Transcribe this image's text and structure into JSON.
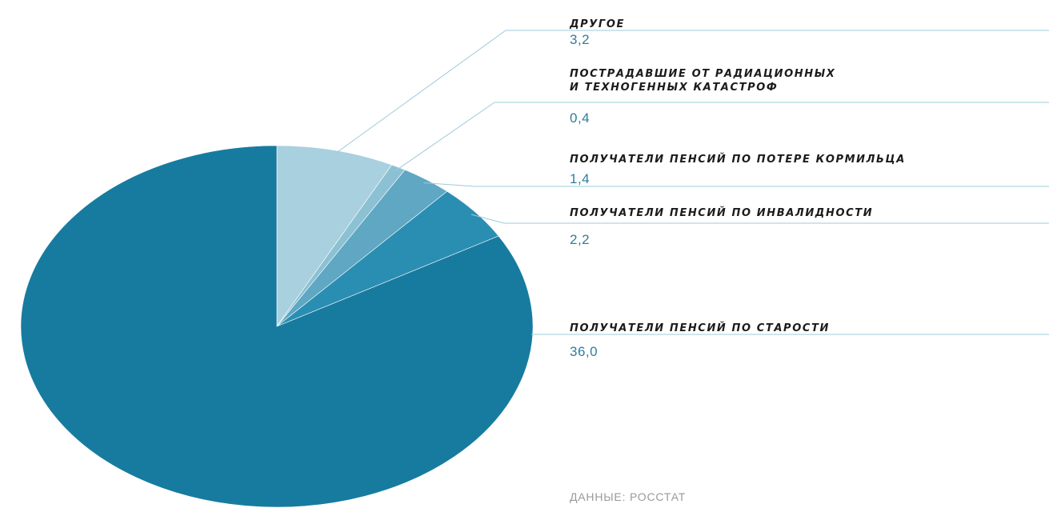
{
  "chart_data": {
    "type": "pie",
    "slices": [
      {
        "label": "ДРУГОЕ",
        "label_lines": [
          "ДРУГОЕ"
        ],
        "value": 3.2,
        "value_label": "3,2",
        "color": "#a9d0de"
      },
      {
        "label": "ПОСТРАДАВШИЕ ОТ РАДИАЦИОННЫХ И ТЕХНОГЕННЫХ КАТАСТРОФ",
        "label_lines": [
          "ПОСТРАДАВШИЕ ОТ РАДИАЦИОННЫХ",
          "И ТЕХНОГЕННЫХ КАТАСТРОФ"
        ],
        "value": 0.4,
        "value_label": "0,4",
        "color": "#8cc1d4"
      },
      {
        "label": "ПОЛУЧАТЕЛИ ПЕНСИЙ ПО ПОТЕРЕ КОРМИЛЬЦА",
        "label_lines": [
          "ПОЛУЧАТЕЛИ ПЕНСИЙ ПО ПОТЕРЕ КОРМИЛЬЦА"
        ],
        "value": 1.4,
        "value_label": "1,4",
        "color": "#5fa7c2"
      },
      {
        "label": "ПОЛУЧАТЕЛИ ПЕНСИЙ ПО ИНВАЛИДНОСТИ",
        "label_lines": [
          "ПОЛУЧАТЕЛИ ПЕНСИЙ ПО ИНВАЛИДНОСТИ"
        ],
        "value": 2.2,
        "value_label": "2,2",
        "color": "#2a8eb2"
      },
      {
        "label": "ПОЛУЧАТЕЛИ ПЕНСИЙ ПО СТАРОСТИ",
        "label_lines": [
          "ПОЛУЧАТЕЛИ ПЕНСИЙ ПО СТАРОСТИ"
        ],
        "value": 36.0,
        "value_label": "36,0",
        "color": "#177ba0"
      }
    ],
    "start_angle_deg": 0,
    "direction": "clockwise",
    "legend": "right"
  },
  "source": "ДАННЫЕ: РОССТАТ",
  "colors": {
    "leader_line": "#9ccbdb",
    "value_text": "#2c7f9c",
    "label_text": "#1b1b1b"
  }
}
